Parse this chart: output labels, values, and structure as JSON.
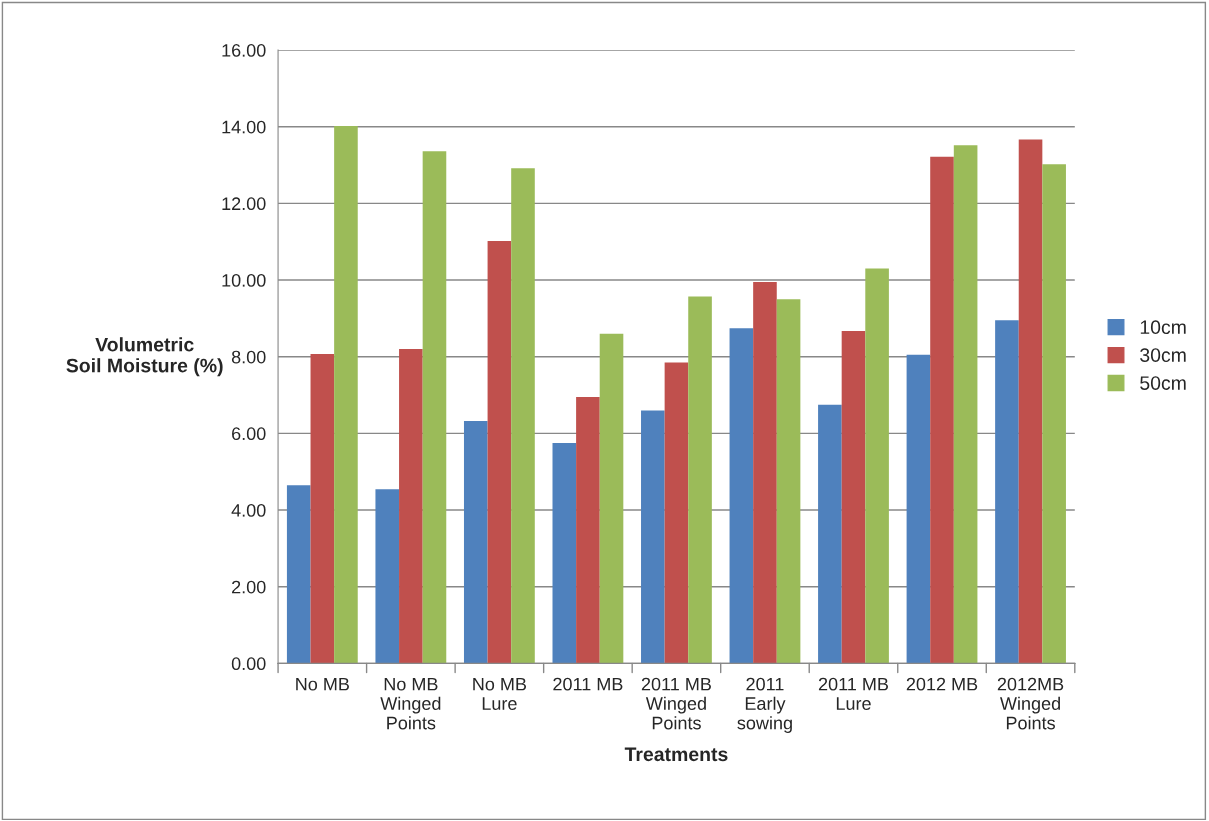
{
  "chart_data": {
    "type": "bar",
    "xlabel": "Treatments",
    "ylabel": "Volumetric\nSoil Moisture (%)",
    "categories": [
      "No MB",
      "No MB\nWinged\nPoints",
      "No MB\nLure",
      "2011 MB",
      "2011 MB\nWinged\nPoints",
      "2011\nEarly\nsowing",
      "2011 MB\nLure",
      "2012 MB",
      "2012MB\nWinged\nPoints"
    ],
    "series": [
      {
        "name": "10cm",
        "color": "#4f81bd",
        "values": [
          4.65,
          4.54,
          6.32,
          5.75,
          6.6,
          8.74,
          6.75,
          8.05,
          8.95
        ]
      },
      {
        "name": "30cm",
        "color": "#c0504d",
        "values": [
          8.07,
          8.2,
          11.02,
          6.95,
          7.85,
          9.95,
          8.67,
          13.22,
          13.67
        ]
      },
      {
        "name": "50cm",
        "color": "#9bbb59",
        "values": [
          14.02,
          13.36,
          12.92,
          8.6,
          9.57,
          9.5,
          10.3,
          13.52,
          13.02
        ]
      }
    ],
    "ylim": [
      0,
      16
    ],
    "yticks": [
      {
        "value": 0,
        "label": "0.00"
      },
      {
        "value": 2,
        "label": "2.00"
      },
      {
        "value": 4,
        "label": "4.00"
      },
      {
        "value": 6,
        "label": "6.00"
      },
      {
        "value": 8,
        "label": "8.00"
      },
      {
        "value": 10,
        "label": "10.00"
      },
      {
        "value": 12,
        "label": "12.00"
      },
      {
        "value": 14,
        "label": "14.00"
      },
      {
        "value": 16,
        "label": "16.00"
      }
    ],
    "grid": "y",
    "legend": "right"
  }
}
